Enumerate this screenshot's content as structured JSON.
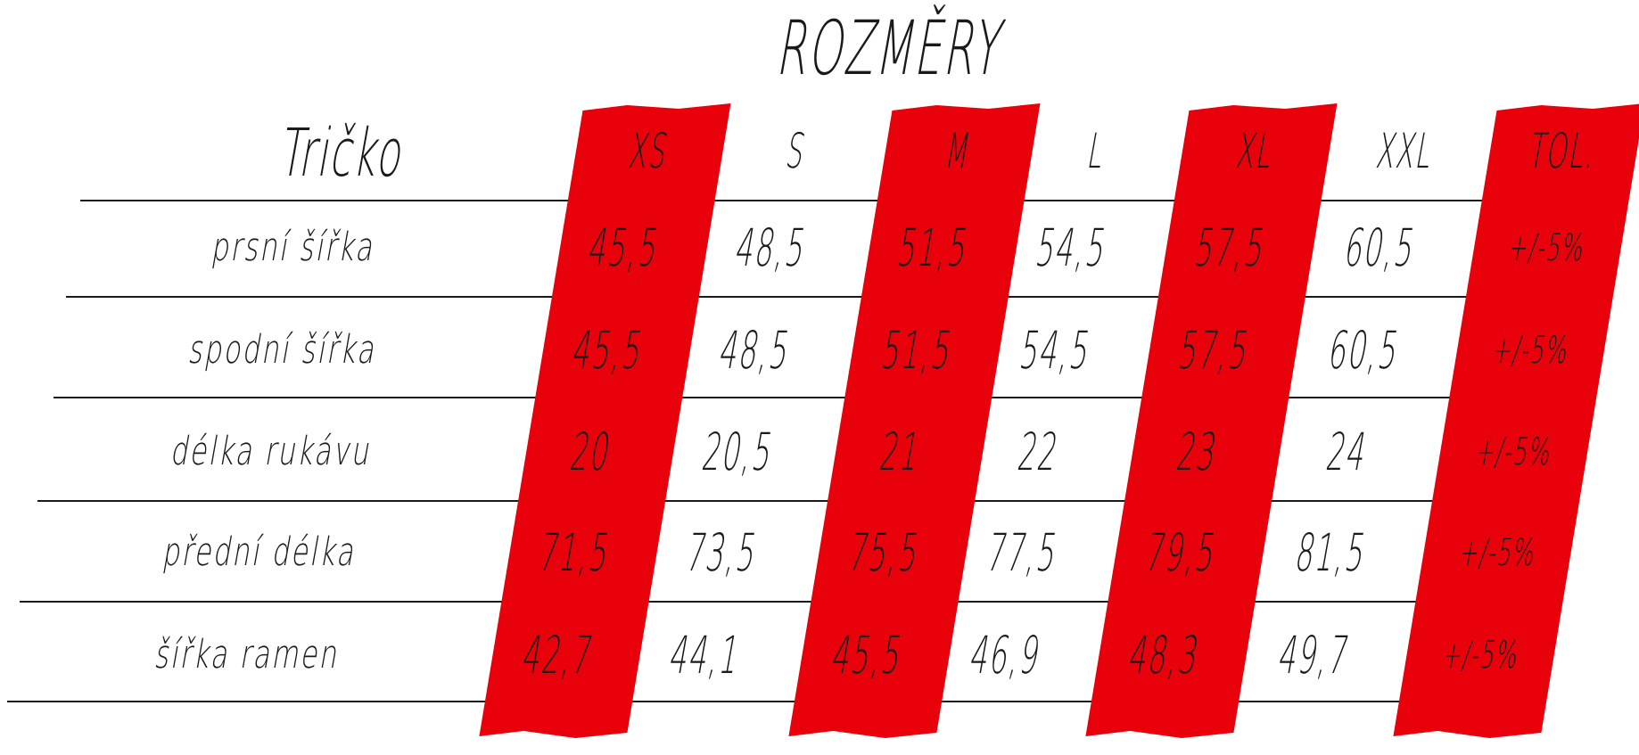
{
  "title": "ROZMĚRY",
  "product": "Tričko",
  "accent_color": "#e8000a",
  "size_headers": [
    "XS",
    "S",
    "M",
    "L",
    "XL",
    "XXL",
    "TOL."
  ],
  "highlighted_columns": [
    "XS",
    "M",
    "XL",
    "TOL."
  ],
  "rows": [
    {
      "label": "prsní šířka",
      "values": [
        "45,5",
        "48,5",
        "51,5",
        "54,5",
        "57,5",
        "60,5",
        "+/-5%"
      ]
    },
    {
      "label": "spodní šířka",
      "values": [
        "45,5",
        "48,5",
        "51,5",
        "54,5",
        "57,5",
        "60,5",
        "+/-5%"
      ]
    },
    {
      "label": "délka rukávu",
      "values": [
        "20",
        "20,5",
        "21",
        "22",
        "23",
        "24",
        "+/-5%"
      ]
    },
    {
      "label": "přední délka",
      "values": [
        "71,5",
        "73,5",
        "75,5",
        "77,5",
        "79,5",
        "81,5",
        "+/-5%"
      ]
    },
    {
      "label": "šířka ramen",
      "values": [
        "42,7",
        "44,1",
        "45,5",
        "46,9",
        "48,3",
        "49,7",
        "+/-5%"
      ]
    }
  ]
}
